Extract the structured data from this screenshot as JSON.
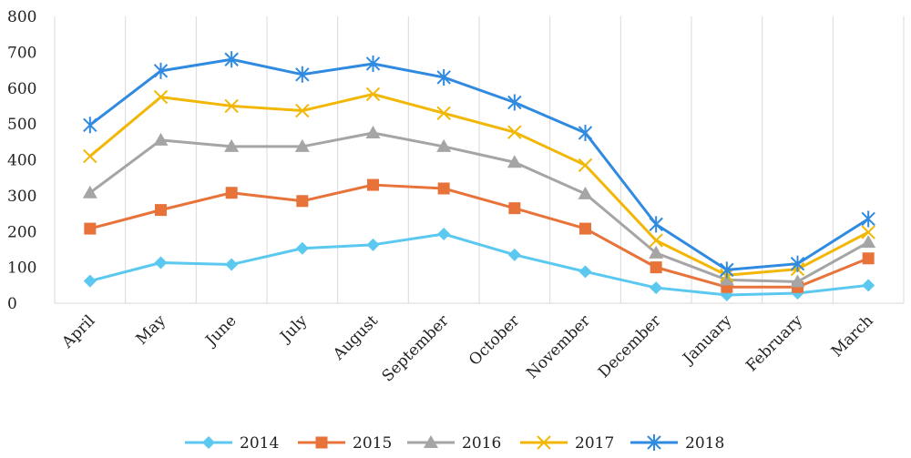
{
  "chart_data": {
    "type": "line",
    "categories": [
      "April",
      "May",
      "June",
      "July",
      "August",
      "September",
      "October",
      "November",
      "December",
      "January",
      "February",
      "March"
    ],
    "ylim": [
      0,
      800
    ],
    "yticks": [
      0,
      100,
      200,
      300,
      400,
      500,
      600,
      700,
      800
    ],
    "grid": "vertical",
    "legend_position": "bottom",
    "series": [
      {
        "name": "2014",
        "color": "#5bc8f0",
        "marker": "diamond",
        "values": [
          62,
          113,
          108,
          153,
          163,
          193,
          135,
          88,
          43,
          23,
          28,
          50
        ]
      },
      {
        "name": "2015",
        "color": "#e8733a",
        "marker": "square",
        "values": [
          208,
          260,
          308,
          285,
          330,
          320,
          265,
          208,
          100,
          45,
          45,
          125
        ]
      },
      {
        "name": "2016",
        "color": "#a5a5a5",
        "marker": "triangle",
        "values": [
          308,
          455,
          437,
          437,
          475,
          437,
          393,
          305,
          140,
          65,
          60,
          170
        ]
      },
      {
        "name": "2017",
        "color": "#f2b705",
        "marker": "x",
        "values": [
          410,
          575,
          550,
          537,
          583,
          530,
          477,
          385,
          175,
          78,
          95,
          198
        ]
      },
      {
        "name": "2018",
        "color": "#2f8ae0",
        "marker": "asterisk",
        "values": [
          497,
          648,
          680,
          638,
          668,
          630,
          560,
          475,
          220,
          93,
          110,
          235
        ]
      }
    ]
  }
}
